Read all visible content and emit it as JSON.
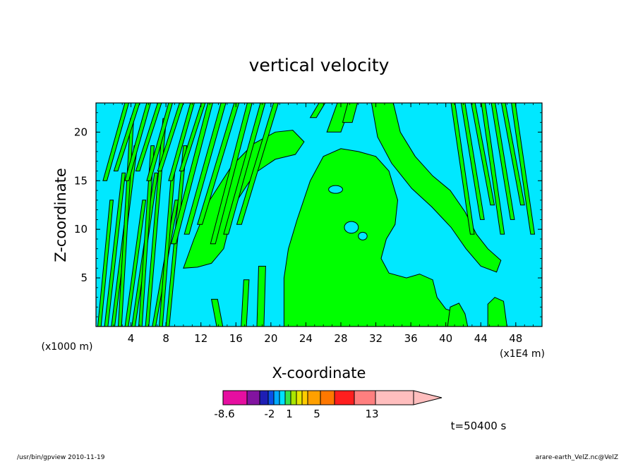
{
  "chart_data": {
    "type": "heatmap",
    "title": "vertical velocity",
    "xlabel": "X-coordinate",
    "ylabel": "Z-coordinate",
    "x_unit": "(x1000 m)",
    "x_scale_note": "(x1E4 m)",
    "x_ticks": [
      "4",
      "8",
      "12",
      "16",
      "20",
      "24",
      "28",
      "32",
      "36",
      "40",
      "44",
      "48"
    ],
    "y_ticks": [
      "5",
      "10",
      "15",
      "20"
    ],
    "xlim": [
      0,
      51
    ],
    "ylim": [
      0,
      23
    ],
    "time_label": "t=50400 s",
    "colorbar": {
      "labels": [
        "-8.6",
        "-2",
        "1",
        "5",
        "13"
      ],
      "colors": [
        "#e60fa0",
        "#8214a0",
        "#1e1eb4",
        "#0a50e6",
        "#00aaff",
        "#00e0ff",
        "#36e34a",
        "#aae600",
        "#e6e600",
        "#ffcc00",
        "#ffa000",
        "#ff7800",
        "#ff1e1e",
        "#ff7f7f",
        "#ffbebe"
      ]
    },
    "field_colors": {
      "positive": "#00ff00",
      "negative": "#00e8ff",
      "contour": "#000000"
    },
    "footer_left": "/usr/bin/gpview   2010-11-19",
    "footer_right": "arare-earth_VelZ.nc@VelZ"
  }
}
